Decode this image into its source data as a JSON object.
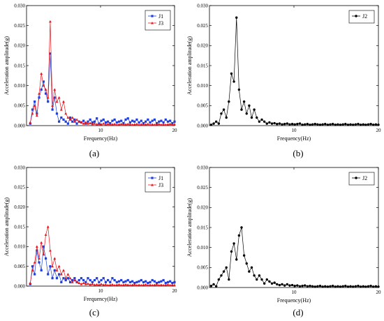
{
  "chart_data": [
    {
      "type": "line",
      "caption": "(a)",
      "xlabel": "Frequency(Hz)",
      "ylabel": "Acceleration amplitude(g)",
      "xlim": [
        0,
        20
      ],
      "ylim": [
        0,
        0.03
      ],
      "xticks": [
        10,
        20
      ],
      "xtick_labels": [
        "10",
        "20"
      ],
      "yticks": [
        0.0,
        0.005,
        0.01,
        0.015,
        0.02,
        0.025,
        0.03
      ],
      "ytick_labels": [
        "0.000",
        "0.005",
        "0.010",
        "0.015",
        "0.020",
        "0.025",
        "0.030"
      ],
      "grid": false,
      "legend_position": "top-right",
      "series": [
        {
          "name": "J1",
          "color": "#1f3fd8",
          "marker": "square",
          "x": [
            0.5,
            0.8,
            1.1,
            1.4,
            1.7,
            2.0,
            2.3,
            2.6,
            2.9,
            3.2,
            3.5,
            3.8,
            4.1,
            4.4,
            4.7,
            5.0,
            5.3,
            5.6,
            5.9,
            6.2,
            6.5,
            6.8,
            7.1,
            7.4,
            7.7,
            8.0,
            8.3,
            8.6,
            8.9,
            9.2,
            9.5,
            9.8,
            10.1,
            10.4,
            10.7,
            11.0,
            11.3,
            11.6,
            11.9,
            12.2,
            12.5,
            12.8,
            13.1,
            13.4,
            13.7,
            14.0,
            14.3,
            14.6,
            14.9,
            15.2,
            15.5,
            15.8,
            16.1,
            16.4,
            16.7,
            17.0,
            17.3,
            17.6,
            17.9,
            18.2,
            18.5,
            18.8,
            19.1,
            19.4,
            19.7,
            20.0
          ],
          "y": [
            0.0005,
            0.004,
            0.006,
            0.003,
            0.007,
            0.009,
            0.011,
            0.008,
            0.006,
            0.018,
            0.004,
            0.007,
            0.003,
            0.001,
            0.002,
            0.0015,
            0.001,
            0.0005,
            0.002,
            0.001,
            0.0015,
            0.0005,
            0.001,
            0.0008,
            0.0012,
            0.0005,
            0.001,
            0.0015,
            0.0008,
            0.001,
            0.0018,
            0.0005,
            0.0012,
            0.0015,
            0.0008,
            0.001,
            0.0006,
            0.0012,
            0.0015,
            0.0008,
            0.001,
            0.0012,
            0.0006,
            0.0015,
            0.0018,
            0.0008,
            0.0012,
            0.001,
            0.0015,
            0.0008,
            0.0012,
            0.0006,
            0.001,
            0.0015,
            0.0008,
            0.0012,
            0.0015,
            0.0006,
            0.001,
            0.0012,
            0.0008,
            0.0015,
            0.001,
            0.0012,
            0.0006,
            0.001
          ]
        },
        {
          "name": "J3",
          "color": "#e8141c",
          "marker": "triangle",
          "x": [
            0.5,
            0.8,
            1.1,
            1.4,
            1.7,
            2.0,
            2.3,
            2.6,
            2.9,
            3.2,
            3.5,
            3.8,
            4.1,
            4.4,
            4.7,
            5.0,
            5.3,
            5.6,
            5.9,
            6.2,
            6.5,
            6.8,
            7.1,
            7.4,
            7.7,
            8.0,
            8.3,
            8.6,
            8.9,
            9.2,
            9.5,
            9.8,
            10.1,
            10.4,
            10.7,
            11.0,
            11.3,
            11.6,
            11.9,
            12.2,
            12.5,
            12.8,
            13.1,
            13.4,
            13.7,
            14.0,
            14.3,
            14.6,
            14.9,
            15.2,
            15.5,
            15.8,
            16.1,
            16.4,
            16.7,
            17.0,
            17.3,
            17.6,
            17.9,
            18.2,
            18.5,
            18.8,
            19.1,
            19.4,
            19.7,
            20.0
          ],
          "y": [
            0.0008,
            0.003,
            0.005,
            0.0025,
            0.008,
            0.013,
            0.01,
            0.009,
            0.007,
            0.026,
            0.005,
            0.009,
            0.006,
            0.007,
            0.004,
            0.006,
            0.003,
            0.002,
            0.0015,
            0.002,
            0.001,
            0.0015,
            0.001,
            0.0008,
            0.0005,
            0.0008,
            0.0005,
            0.0006,
            0.0004,
            0.0005,
            0.0003,
            0.0004,
            0.0003,
            0.0005,
            0.0003,
            0.0004,
            0.0002,
            0.0003,
            0.0004,
            0.0002,
            0.0003,
            0.0004,
            0.0002,
            0.0003,
            0.0004,
            0.0003,
            0.0002,
            0.0003,
            0.0004,
            0.0002,
            0.0003,
            0.0002,
            0.0003,
            0.0004,
            0.0002,
            0.0003,
            0.0002,
            0.0003,
            0.0004,
            0.0002,
            0.0003,
            0.0002,
            0.0003,
            0.0004,
            0.0002,
            0.0003
          ]
        }
      ]
    },
    {
      "type": "line",
      "caption": "(b)",
      "xlabel": "Frequency(Hz)",
      "ylabel": "Acceleration amplitude(g)",
      "xlim": [
        0,
        20
      ],
      "ylim": [
        0,
        0.03
      ],
      "xticks": [
        10,
        20
      ],
      "xtick_labels": [
        "10",
        "20"
      ],
      "yticks": [
        0.0,
        0.005,
        0.01,
        0.015,
        0.02,
        0.025,
        0.03
      ],
      "ytick_labels": [
        "0.000",
        "0.005",
        "0.010",
        "0.015",
        "0.020",
        "0.025",
        "0.030"
      ],
      "grid": false,
      "legend_position": "top-right",
      "series": [
        {
          "name": "J2",
          "color": "#000000",
          "marker": "circle",
          "x": [
            0.2,
            0.5,
            0.8,
            1.1,
            1.4,
            1.7,
            2.0,
            2.3,
            2.6,
            2.9,
            3.2,
            3.5,
            3.8,
            4.1,
            4.4,
            4.7,
            5.0,
            5.3,
            5.6,
            5.9,
            6.2,
            6.5,
            6.8,
            7.1,
            7.4,
            7.7,
            8.0,
            8.3,
            8.6,
            8.9,
            9.2,
            9.5,
            9.8,
            10.1,
            10.4,
            10.7,
            11.0,
            11.3,
            11.6,
            11.9,
            12.2,
            12.5,
            12.8,
            13.1,
            13.4,
            13.7,
            14.0,
            14.3,
            14.6,
            14.9,
            15.2,
            15.5,
            15.8,
            16.1,
            16.4,
            16.7,
            17.0,
            17.3,
            17.6,
            17.9,
            18.2,
            18.5,
            18.8,
            19.1,
            19.4,
            19.7,
            20.0
          ],
          "y": [
            0.0002,
            0.0005,
            0.001,
            0.0005,
            0.003,
            0.004,
            0.002,
            0.006,
            0.013,
            0.011,
            0.027,
            0.009,
            0.004,
            0.006,
            0.003,
            0.005,
            0.002,
            0.004,
            0.002,
            0.001,
            0.0015,
            0.001,
            0.0005,
            0.0008,
            0.0005,
            0.0006,
            0.0004,
            0.0005,
            0.0003,
            0.0004,
            0.0005,
            0.0003,
            0.0004,
            0.0003,
            0.0004,
            0.0005,
            0.0002,
            0.0003,
            0.0004,
            0.0002,
            0.0003,
            0.0004,
            0.0003,
            0.0002,
            0.0003,
            0.0004,
            0.0002,
            0.0003,
            0.0004,
            0.0002,
            0.0003,
            0.0002,
            0.0003,
            0.0004,
            0.0002,
            0.0003,
            0.0002,
            0.0003,
            0.0004,
            0.0002,
            0.0003,
            0.0002,
            0.0003,
            0.0004,
            0.0002,
            0.0003,
            0.0002
          ]
        }
      ]
    },
    {
      "type": "line",
      "caption": "(c)",
      "xlabel": "Frequency(Hz)",
      "ylabel": "Acceleration amplitude(g)",
      "xlim": [
        0,
        20
      ],
      "ylim": [
        0,
        0.03
      ],
      "xticks": [
        10,
        20
      ],
      "xtick_labels": [
        "10",
        "20"
      ],
      "yticks": [
        0.0,
        0.005,
        0.01,
        0.015,
        0.02,
        0.025,
        0.03
      ],
      "ytick_labels": [
        "0.000",
        "0.005",
        "0.010",
        "0.015",
        "0.020",
        "0.025",
        "0.030"
      ],
      "grid": false,
      "legend_position": "top-right",
      "series": [
        {
          "name": "J1",
          "color": "#1f3fd8",
          "marker": "square",
          "x": [
            0.5,
            0.8,
            1.1,
            1.4,
            1.7,
            2.0,
            2.3,
            2.6,
            2.9,
            3.2,
            3.5,
            3.8,
            4.1,
            4.4,
            4.7,
            5.0,
            5.3,
            5.6,
            5.9,
            6.2,
            6.5,
            6.8,
            7.1,
            7.4,
            7.7,
            8.0,
            8.3,
            8.6,
            8.9,
            9.2,
            9.5,
            9.8,
            10.1,
            10.4,
            10.7,
            11.0,
            11.3,
            11.6,
            11.9,
            12.2,
            12.5,
            12.8,
            13.1,
            13.4,
            13.7,
            14.0,
            14.3,
            14.6,
            14.9,
            15.2,
            15.5,
            15.8,
            16.1,
            16.4,
            16.7,
            17.0,
            17.3,
            17.6,
            17.9,
            18.2,
            18.5,
            18.8,
            19.1,
            19.4,
            19.7,
            20.0
          ],
          "y": [
            0.0005,
            0.005,
            0.003,
            0.009,
            0.006,
            0.004,
            0.01,
            0.007,
            0.003,
            0.005,
            0.002,
            0.004,
            0.002,
            0.003,
            0.001,
            0.002,
            0.0015,
            0.002,
            0.001,
            0.0015,
            0.002,
            0.001,
            0.0015,
            0.002,
            0.0015,
            0.001,
            0.002,
            0.0015,
            0.001,
            0.0015,
            0.002,
            0.001,
            0.0015,
            0.002,
            0.001,
            0.0015,
            0.001,
            0.002,
            0.0015,
            0.001,
            0.0012,
            0.0015,
            0.001,
            0.0012,
            0.0015,
            0.001,
            0.0012,
            0.0008,
            0.001,
            0.0012,
            0.0015,
            0.001,
            0.0012,
            0.0008,
            0.001,
            0.0015,
            0.0012,
            0.0008,
            0.001,
            0.0012,
            0.0015,
            0.0008,
            0.001,
            0.0012,
            0.0008,
            0.001
          ]
        },
        {
          "name": "J3",
          "color": "#e8141c",
          "marker": "triangle",
          "x": [
            0.5,
            0.8,
            1.1,
            1.4,
            1.7,
            2.0,
            2.3,
            2.6,
            2.9,
            3.2,
            3.5,
            3.8,
            4.1,
            4.4,
            4.7,
            5.0,
            5.3,
            5.6,
            5.9,
            6.2,
            6.5,
            6.8,
            7.1,
            7.4,
            7.7,
            8.0,
            8.3,
            8.6,
            8.9,
            9.2,
            9.5,
            9.8,
            10.1,
            10.4,
            10.7,
            11.0,
            11.3,
            11.6,
            11.9,
            12.2,
            12.5,
            12.8,
            13.1,
            13.4,
            13.7,
            14.0,
            14.3,
            14.6,
            14.9,
            15.2,
            15.5,
            15.8,
            16.1,
            16.4,
            16.7,
            17.0,
            17.3,
            17.6,
            17.9,
            18.2,
            18.5,
            18.8,
            19.1,
            19.4,
            19.7,
            20.0
          ],
          "y": [
            0.0008,
            0.004,
            0.006,
            0.01,
            0.007,
            0.011,
            0.008,
            0.013,
            0.015,
            0.009,
            0.005,
            0.007,
            0.004,
            0.005,
            0.003,
            0.004,
            0.002,
            0.003,
            0.002,
            0.001,
            0.0015,
            0.001,
            0.0008,
            0.0005,
            0.0008,
            0.0005,
            0.0006,
            0.0004,
            0.0005,
            0.0003,
            0.0004,
            0.0003,
            0.0005,
            0.0003,
            0.0004,
            0.0002,
            0.0003,
            0.0004,
            0.0002,
            0.0003,
            0.0004,
            0.0002,
            0.0003,
            0.0004,
            0.0003,
            0.0002,
            0.0003,
            0.0004,
            0.0002,
            0.0003,
            0.0002,
            0.0003,
            0.0004,
            0.0002,
            0.0003,
            0.0002,
            0.0003,
            0.0004,
            0.0002,
            0.0003,
            0.0002,
            0.0003,
            0.0004,
            0.0002,
            0.0003,
            0.0002
          ]
        }
      ]
    },
    {
      "type": "line",
      "caption": "(d)",
      "xlabel": "Frequency(Hz)",
      "ylabel": "Acceleration amplitude(g)",
      "xlim": [
        0,
        20
      ],
      "ylim": [
        0,
        0.03
      ],
      "xticks": [
        10,
        20
      ],
      "xtick_labels": [
        "10",
        "20"
      ],
      "yticks": [
        0.0,
        0.005,
        0.01,
        0.015,
        0.02,
        0.025,
        0.03
      ],
      "ytick_labels": [
        "0.000",
        "0.005",
        "0.010",
        "0.015",
        "0.020",
        "0.025",
        "0.030"
      ],
      "grid": false,
      "legend_position": "top-right",
      "series": [
        {
          "name": "J2",
          "color": "#000000",
          "marker": "circle",
          "x": [
            0.2,
            0.5,
            0.8,
            1.1,
            1.4,
            1.7,
            2.0,
            2.3,
            2.6,
            2.9,
            3.2,
            3.5,
            3.8,
            4.1,
            4.4,
            4.7,
            5.0,
            5.3,
            5.6,
            5.9,
            6.2,
            6.5,
            6.8,
            7.1,
            7.4,
            7.7,
            8.0,
            8.3,
            8.6,
            8.9,
            9.2,
            9.5,
            9.8,
            10.1,
            10.4,
            10.7,
            11.0,
            11.3,
            11.6,
            11.9,
            12.2,
            12.5,
            12.8,
            13.1,
            13.4,
            13.7,
            14.0,
            14.3,
            14.6,
            14.9,
            15.2,
            15.5,
            15.8,
            16.1,
            16.4,
            16.7,
            17.0,
            17.3,
            17.6,
            17.9,
            18.2,
            18.5,
            18.8,
            19.1,
            19.4,
            19.7,
            20.0
          ],
          "y": [
            0.0004,
            0.0008,
            0.0003,
            0.002,
            0.003,
            0.004,
            0.005,
            0.002,
            0.009,
            0.011,
            0.007,
            0.013,
            0.015,
            0.008,
            0.006,
            0.004,
            0.005,
            0.003,
            0.002,
            0.003,
            0.002,
            0.001,
            0.002,
            0.0015,
            0.001,
            0.0012,
            0.0008,
            0.0006,
            0.0008,
            0.0005,
            0.0008,
            0.0005,
            0.0006,
            0.0004,
            0.0005,
            0.0003,
            0.0004,
            0.0005,
            0.0003,
            0.0004,
            0.0003,
            0.0002,
            0.0003,
            0.0004,
            0.0002,
            0.0003,
            0.0002,
            0.0003,
            0.0004,
            0.0002,
            0.0003,
            0.0002,
            0.0003,
            0.0004,
            0.0002,
            0.0003,
            0.0002,
            0.0003,
            0.0004,
            0.0002,
            0.0003,
            0.0002,
            0.0003,
            0.0004,
            0.0002,
            0.0003,
            0.0002
          ]
        }
      ]
    }
  ]
}
